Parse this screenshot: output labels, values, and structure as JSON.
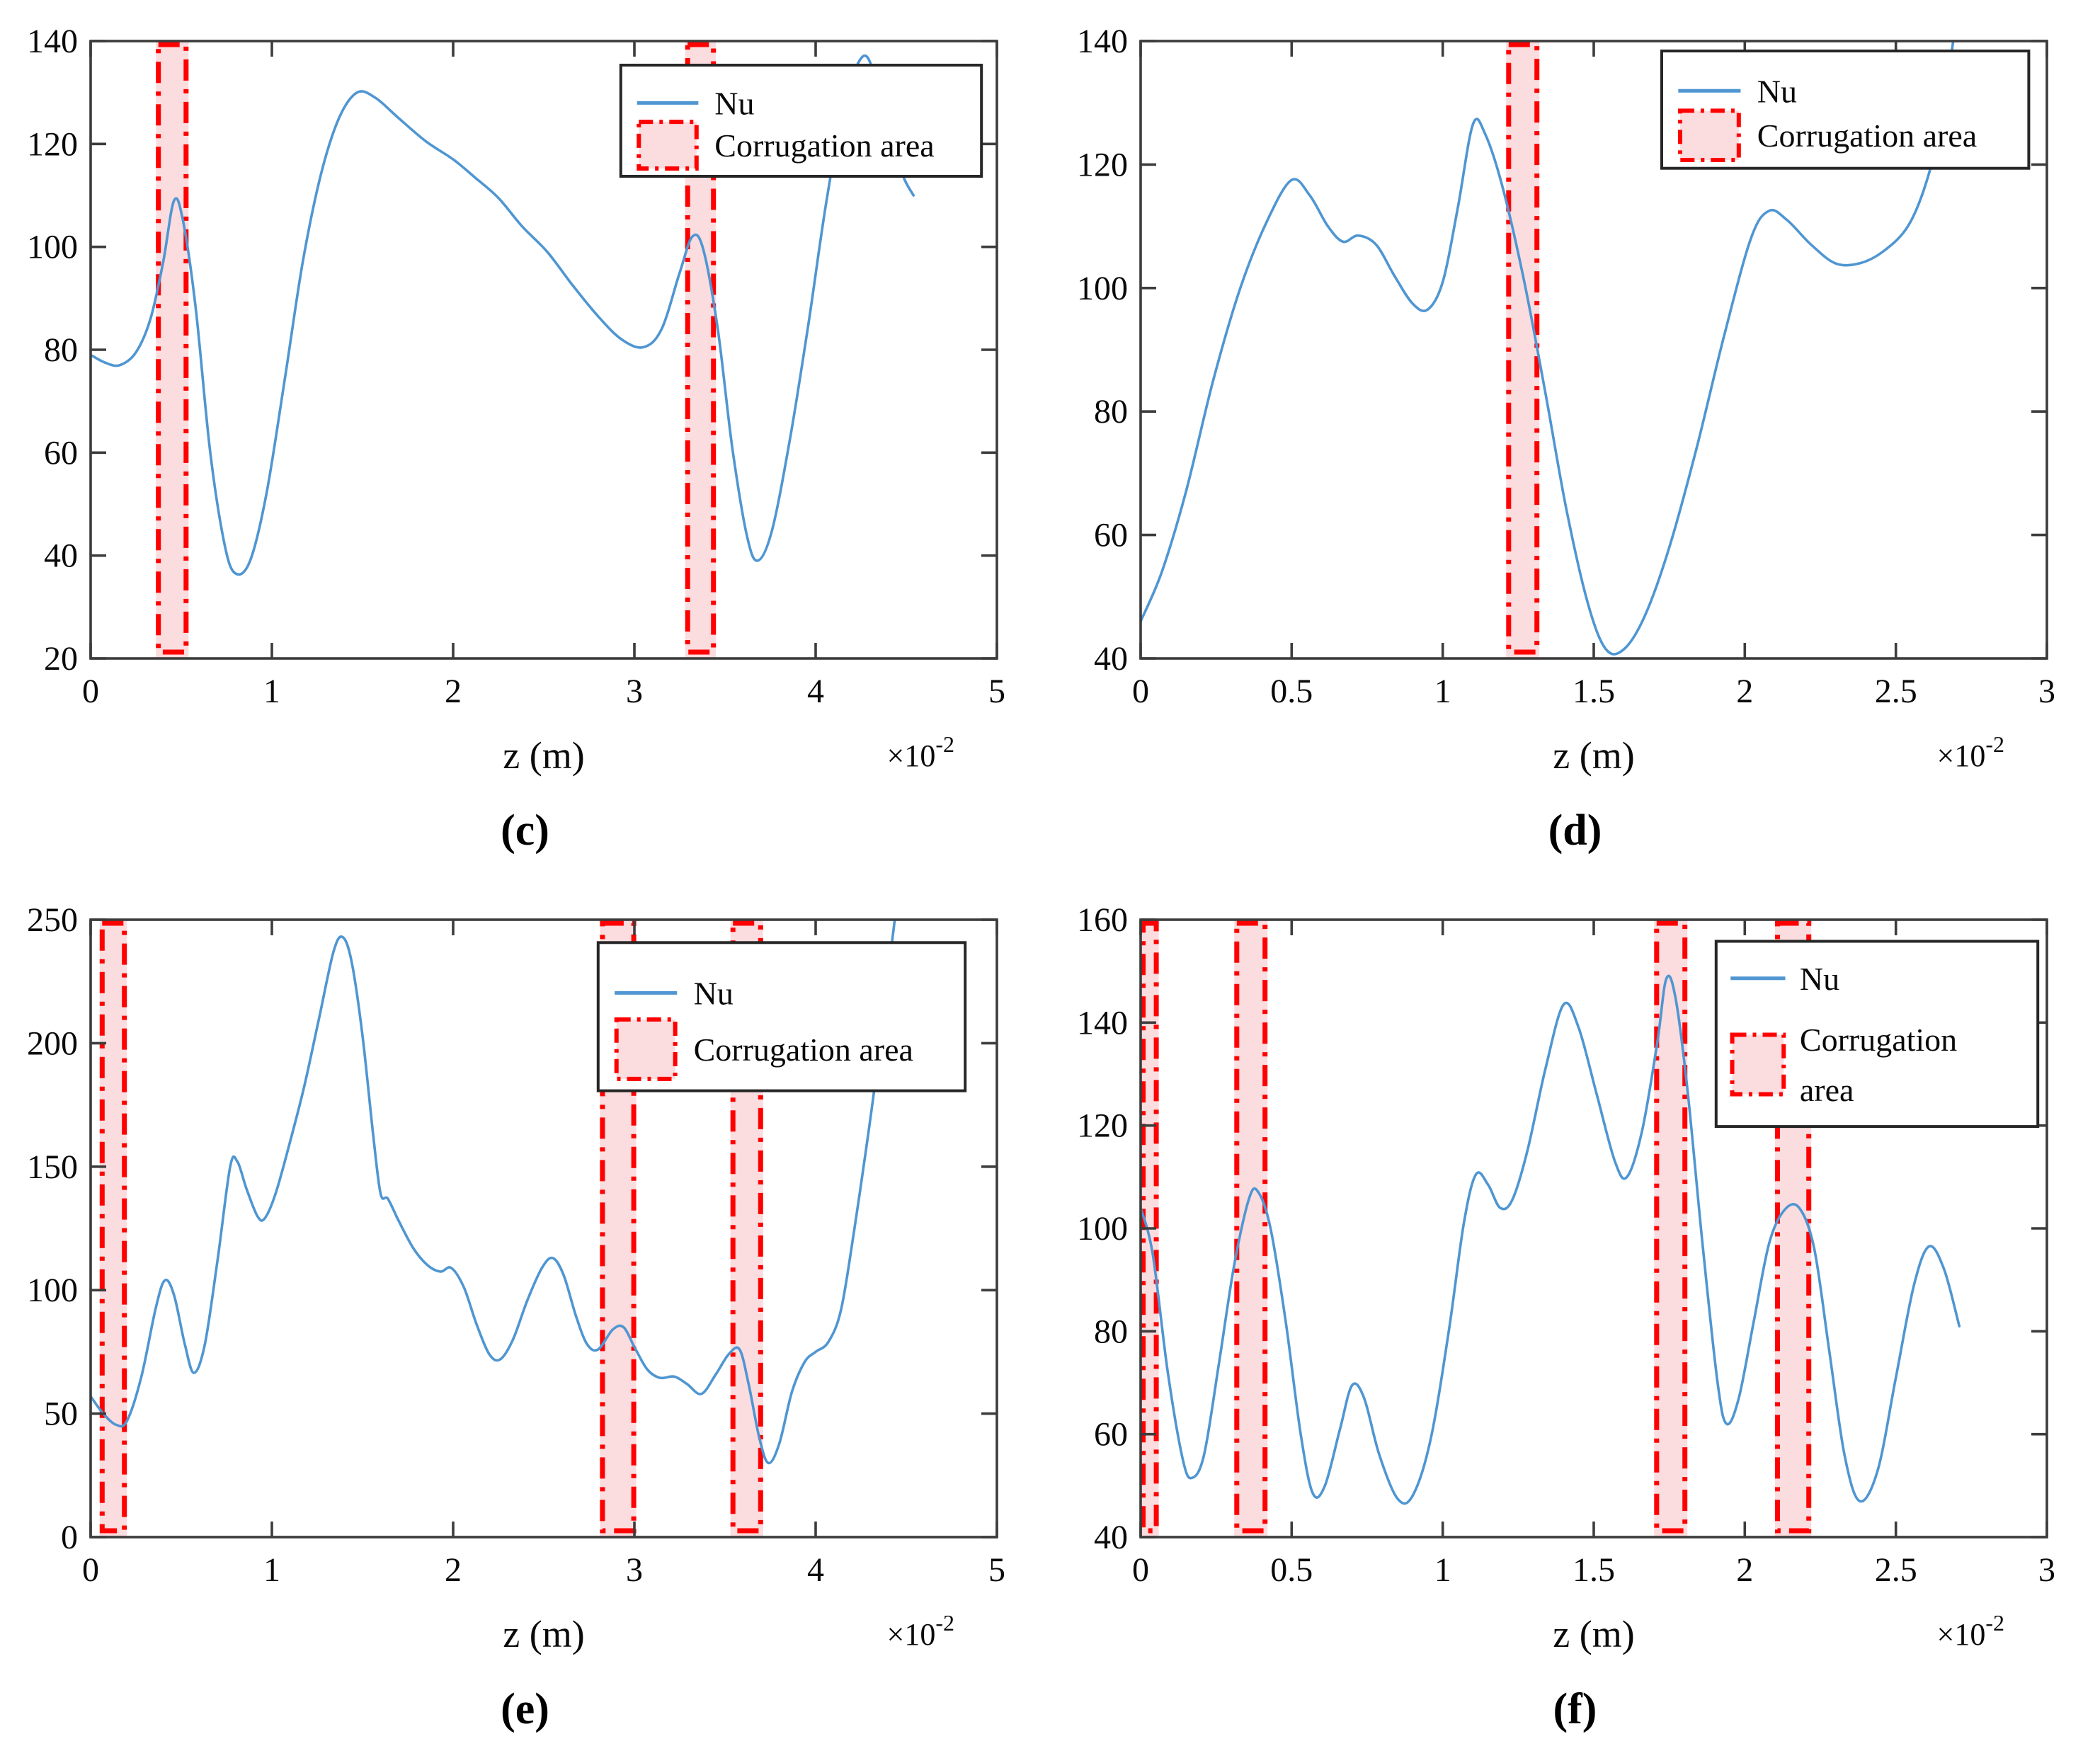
{
  "figure": {
    "background": "#ffffff",
    "series_name": "Nu",
    "band_name": "Corrugation area"
  },
  "styles": {
    "curve_color": "#4f96d2",
    "band_fill": "#fbdcdf",
    "band_border": "#ff0000",
    "axis_color": "#3c3c3c",
    "text_color": "#0a0a0a",
    "legend_border": "#262626",
    "legend_bg": "#ffffff"
  },
  "chart_data": [
    {
      "id": "c",
      "type": "line",
      "caption": "(c)",
      "xlabel": "z (m)",
      "offset_label": "×10^-2",
      "xlim": [
        0,
        5
      ],
      "ylim": [
        20,
        140
      ],
      "xticks": [
        0,
        1,
        2,
        3,
        4,
        5
      ],
      "yticks": [
        20,
        40,
        60,
        80,
        100,
        120,
        140
      ],
      "bands": [
        [
          0.36,
          0.54
        ],
        [
          3.28,
          3.45
        ]
      ],
      "legend": {
        "x": 0.585,
        "y": 0.039,
        "w": 0.398,
        "h": 0.18,
        "items": [
          {
            "icon": "line",
            "lines": [
              "Nu"
            ]
          },
          {
            "icon": "band",
            "lines": [
              "Corrugation area"
            ]
          }
        ]
      },
      "series": [
        {
          "name": "Nu",
          "points": [
            [
              0,
              79
            ],
            [
              0.08,
              77.5
            ],
            [
              0.16,
              77
            ],
            [
              0.25,
              79.5
            ],
            [
              0.33,
              86
            ],
            [
              0.4,
              97
            ],
            [
              0.46,
              109
            ],
            [
              0.51,
              105
            ],
            [
              0.58,
              88
            ],
            [
              0.66,
              60
            ],
            [
              0.74,
              42
            ],
            [
              0.8,
              36.5
            ],
            [
              0.88,
              39
            ],
            [
              0.97,
              52
            ],
            [
              1.07,
              74
            ],
            [
              1.17,
              97
            ],
            [
              1.27,
              114
            ],
            [
              1.37,
              125
            ],
            [
              1.47,
              130
            ],
            [
              1.57,
              129
            ],
            [
              1.7,
              125
            ],
            [
              1.85,
              120.5
            ],
            [
              2.0,
              117
            ],
            [
              2.12,
              113.5
            ],
            [
              2.25,
              109.5
            ],
            [
              2.38,
              104
            ],
            [
              2.52,
              99
            ],
            [
              2.66,
              92.5
            ],
            [
              2.8,
              86.5
            ],
            [
              2.93,
              82
            ],
            [
              3.05,
              80.5
            ],
            [
              3.15,
              84
            ],
            [
              3.25,
              95
            ],
            [
              3.32,
              102
            ],
            [
              3.38,
              99.5
            ],
            [
              3.46,
              84
            ],
            [
              3.54,
              61
            ],
            [
              3.62,
              44
            ],
            [
              3.68,
              39
            ],
            [
              3.76,
              45
            ],
            [
              3.86,
              63
            ],
            [
              3.96,
              85
            ],
            [
              4.06,
              109
            ],
            [
              4.16,
              128
            ],
            [
              4.26,
              137
            ],
            [
              4.33,
              133
            ],
            [
              4.42,
              122
            ],
            [
              4.48,
              114
            ],
            [
              4.54,
              110
            ]
          ]
        }
      ]
    },
    {
      "id": "d",
      "type": "line",
      "caption": "(d)",
      "xlabel": "z (m)",
      "offset_label": "×10^-2",
      "xlim": [
        0,
        3
      ],
      "ylim": [
        40,
        140
      ],
      "xticks": [
        0,
        0.5,
        1,
        1.5,
        2,
        2.5,
        3
      ],
      "yticks": [
        40,
        60,
        80,
        100,
        120,
        140
      ],
      "bands": [
        [
          1.21,
          1.32
        ]
      ],
      "legend": {
        "x": 0.575,
        "y": 0.016,
        "w": 0.405,
        "h": 0.19,
        "items": [
          {
            "icon": "line",
            "lines": [
              "Nu"
            ]
          },
          {
            "icon": "band",
            "lines": [
              "Corrugation area"
            ]
          }
        ]
      },
      "series": [
        {
          "name": "Nu",
          "points": [
            [
              0,
              46
            ],
            [
              0.07,
              54
            ],
            [
              0.15,
              67
            ],
            [
              0.24,
              85
            ],
            [
              0.33,
              100
            ],
            [
              0.42,
              111
            ],
            [
              0.5,
              117.5
            ],
            [
              0.56,
              115
            ],
            [
              0.62,
              110
            ],
            [
              0.67,
              107.5
            ],
            [
              0.72,
              108.5
            ],
            [
              0.78,
              107
            ],
            [
              0.84,
              102
            ],
            [
              0.9,
              97.5
            ],
            [
              0.95,
              96.5
            ],
            [
              1.0,
              101
            ],
            [
              1.05,
              113
            ],
            [
              1.1,
              126.5
            ],
            [
              1.14,
              125
            ],
            [
              1.2,
              116
            ],
            [
              1.27,
              101
            ],
            [
              1.34,
              83
            ],
            [
              1.41,
              64
            ],
            [
              1.48,
              49
            ],
            [
              1.54,
              41.5
            ],
            [
              1.6,
              41.5
            ],
            [
              1.67,
              47
            ],
            [
              1.75,
              58
            ],
            [
              1.84,
              74
            ],
            [
              1.93,
              92
            ],
            [
              2.02,
              108
            ],
            [
              2.08,
              112.5
            ],
            [
              2.14,
              111
            ],
            [
              2.22,
              107
            ],
            [
              2.3,
              104
            ],
            [
              2.38,
              104
            ],
            [
              2.46,
              106
            ],
            [
              2.54,
              110
            ],
            [
              2.6,
              117
            ],
            [
              2.65,
              127
            ],
            [
              2.69,
              140
            ]
          ]
        }
      ]
    },
    {
      "id": "e",
      "type": "line",
      "caption": "(e)",
      "xlabel": "z (m)",
      "offset_label": "×10^-2",
      "xlim": [
        0,
        5
      ],
      "ylim": [
        0,
        250
      ],
      "xticks": [
        0,
        1,
        2,
        3,
        4,
        5
      ],
      "yticks": [
        0,
        50,
        100,
        150,
        200,
        250
      ],
      "bands": [
        [
          0.05,
          0.2
        ],
        [
          2.81,
          3.01
        ],
        [
          3.53,
          3.71
        ]
      ],
      "legend": {
        "x": 0.56,
        "y": 0.037,
        "w": 0.405,
        "h": 0.24,
        "items": [
          {
            "icon": "line",
            "lines": [
              "Nu"
            ]
          },
          {
            "icon": "band",
            "lines": [
              "Corrugation area"
            ]
          }
        ]
      },
      "series": [
        {
          "name": "Nu",
          "points": [
            [
              0,
              57
            ],
            [
              0.07,
              50
            ],
            [
              0.14,
              45.5
            ],
            [
              0.2,
              47
            ],
            [
              0.28,
              65
            ],
            [
              0.36,
              93
            ],
            [
              0.41,
              104
            ],
            [
              0.46,
              98
            ],
            [
              0.52,
              78
            ],
            [
              0.57,
              66.5
            ],
            [
              0.63,
              78
            ],
            [
              0.7,
              112
            ],
            [
              0.77,
              150
            ],
            [
              0.81,
              152
            ],
            [
              0.86,
              141
            ],
            [
              0.92,
              130
            ],
            [
              0.96,
              129
            ],
            [
              1.02,
              139
            ],
            [
              1.1,
              160
            ],
            [
              1.18,
              183
            ],
            [
              1.26,
              210
            ],
            [
              1.34,
              237
            ],
            [
              1.39,
              243
            ],
            [
              1.44,
              233
            ],
            [
              1.5,
              203
            ],
            [
              1.56,
              162
            ],
            [
              1.6,
              139
            ],
            [
              1.64,
              137
            ],
            [
              1.7,
              128
            ],
            [
              1.78,
              117
            ],
            [
              1.86,
              110
            ],
            [
              1.93,
              107.5
            ],
            [
              1.99,
              109
            ],
            [
              2.06,
              101
            ],
            [
              2.13,
              86
            ],
            [
              2.2,
              74
            ],
            [
              2.26,
              72
            ],
            [
              2.33,
              80
            ],
            [
              2.41,
              96
            ],
            [
              2.49,
              109
            ],
            [
              2.55,
              113
            ],
            [
              2.61,
              106
            ],
            [
              2.68,
              89
            ],
            [
              2.74,
              78
            ],
            [
              2.8,
              76
            ],
            [
              2.88,
              84
            ],
            [
              2.94,
              85
            ],
            [
              3.0,
              77
            ],
            [
              3.07,
              68
            ],
            [
              3.14,
              64.5
            ],
            [
              3.22,
              65
            ],
            [
              3.29,
              62
            ],
            [
              3.37,
              58
            ],
            [
              3.45,
              66
            ],
            [
              3.52,
              74
            ],
            [
              3.58,
              76
            ],
            [
              3.63,
              62
            ],
            [
              3.69,
              40
            ],
            [
              3.74,
              30
            ],
            [
              3.8,
              38
            ],
            [
              3.87,
              59
            ],
            [
              3.94,
              71
            ],
            [
              4.0,
              75
            ],
            [
              4.07,
              79
            ],
            [
              4.14,
              92
            ],
            [
              4.21,
              123
            ],
            [
              4.28,
              158
            ],
            [
              4.33,
              185
            ],
            [
              4.39,
              222
            ],
            [
              4.44,
              252
            ]
          ]
        }
      ]
    },
    {
      "id": "f",
      "type": "line",
      "caption": "(f)",
      "xlabel": "z (m)",
      "offset_label": "×10^-2",
      "xlim": [
        0,
        3
      ],
      "ylim": [
        40,
        160
      ],
      "xticks": [
        0,
        0.5,
        1,
        1.5,
        2,
        2.5,
        3
      ],
      "yticks": [
        40,
        60,
        80,
        100,
        120,
        140,
        160
      ],
      "bands": [
        [
          0.0,
          0.06
        ],
        [
          0.31,
          0.42
        ],
        [
          1.7,
          1.81
        ],
        [
          2.1,
          2.22
        ]
      ],
      "legend": {
        "x": 0.635,
        "y": 0.035,
        "w": 0.355,
        "h": 0.3,
        "items": [
          {
            "icon": "line",
            "lines": [
              "Nu"
            ]
          },
          {
            "icon": "band",
            "lines": [
              "Corrugation",
              "area"
            ]
          }
        ]
      },
      "series": [
        {
          "name": "Nu",
          "points": [
            [
              0,
              104
            ],
            [
              0.04,
              95
            ],
            [
              0.09,
              72
            ],
            [
              0.14,
              55
            ],
            [
              0.17,
              51.5
            ],
            [
              0.21,
              56
            ],
            [
              0.26,
              74
            ],
            [
              0.31,
              93
            ],
            [
              0.36,
              106
            ],
            [
              0.39,
              107
            ],
            [
              0.43,
              100
            ],
            [
              0.48,
              82
            ],
            [
              0.53,
              60
            ],
            [
              0.57,
              48.5
            ],
            [
              0.61,
              50
            ],
            [
              0.66,
              61
            ],
            [
              0.7,
              69.5
            ],
            [
              0.74,
              67
            ],
            [
              0.79,
              56
            ],
            [
              0.85,
              47.5
            ],
            [
              0.9,
              48
            ],
            [
              0.96,
              59
            ],
            [
              1.02,
              80
            ],
            [
              1.07,
              101
            ],
            [
              1.11,
              110.5
            ],
            [
              1.15,
              108.5
            ],
            [
              1.19,
              104
            ],
            [
              1.23,
              105.5
            ],
            [
              1.28,
              115
            ],
            [
              1.34,
              131
            ],
            [
              1.4,
              143.5
            ],
            [
              1.45,
              139
            ],
            [
              1.51,
              126
            ],
            [
              1.57,
              113
            ],
            [
              1.61,
              110
            ],
            [
              1.66,
              119
            ],
            [
              1.71,
              136
            ],
            [
              1.74,
              148.5
            ],
            [
              1.77,
              145
            ],
            [
              1.81,
              127
            ],
            [
              1.86,
              97
            ],
            [
              1.91,
              70
            ],
            [
              1.94,
              62
            ],
            [
              1.98,
              67
            ],
            [
              2.03,
              82
            ],
            [
              2.08,
              97
            ],
            [
              2.13,
              103.5
            ],
            [
              2.18,
              104
            ],
            [
              2.23,
              96
            ],
            [
              2.28,
              76
            ],
            [
              2.33,
              56
            ],
            [
              2.38,
              47
            ],
            [
              2.44,
              53
            ],
            [
              2.5,
              71
            ],
            [
              2.56,
              89
            ],
            [
              2.61,
              96.5
            ],
            [
              2.66,
              92
            ],
            [
              2.71,
              81
            ]
          ]
        }
      ]
    }
  ]
}
